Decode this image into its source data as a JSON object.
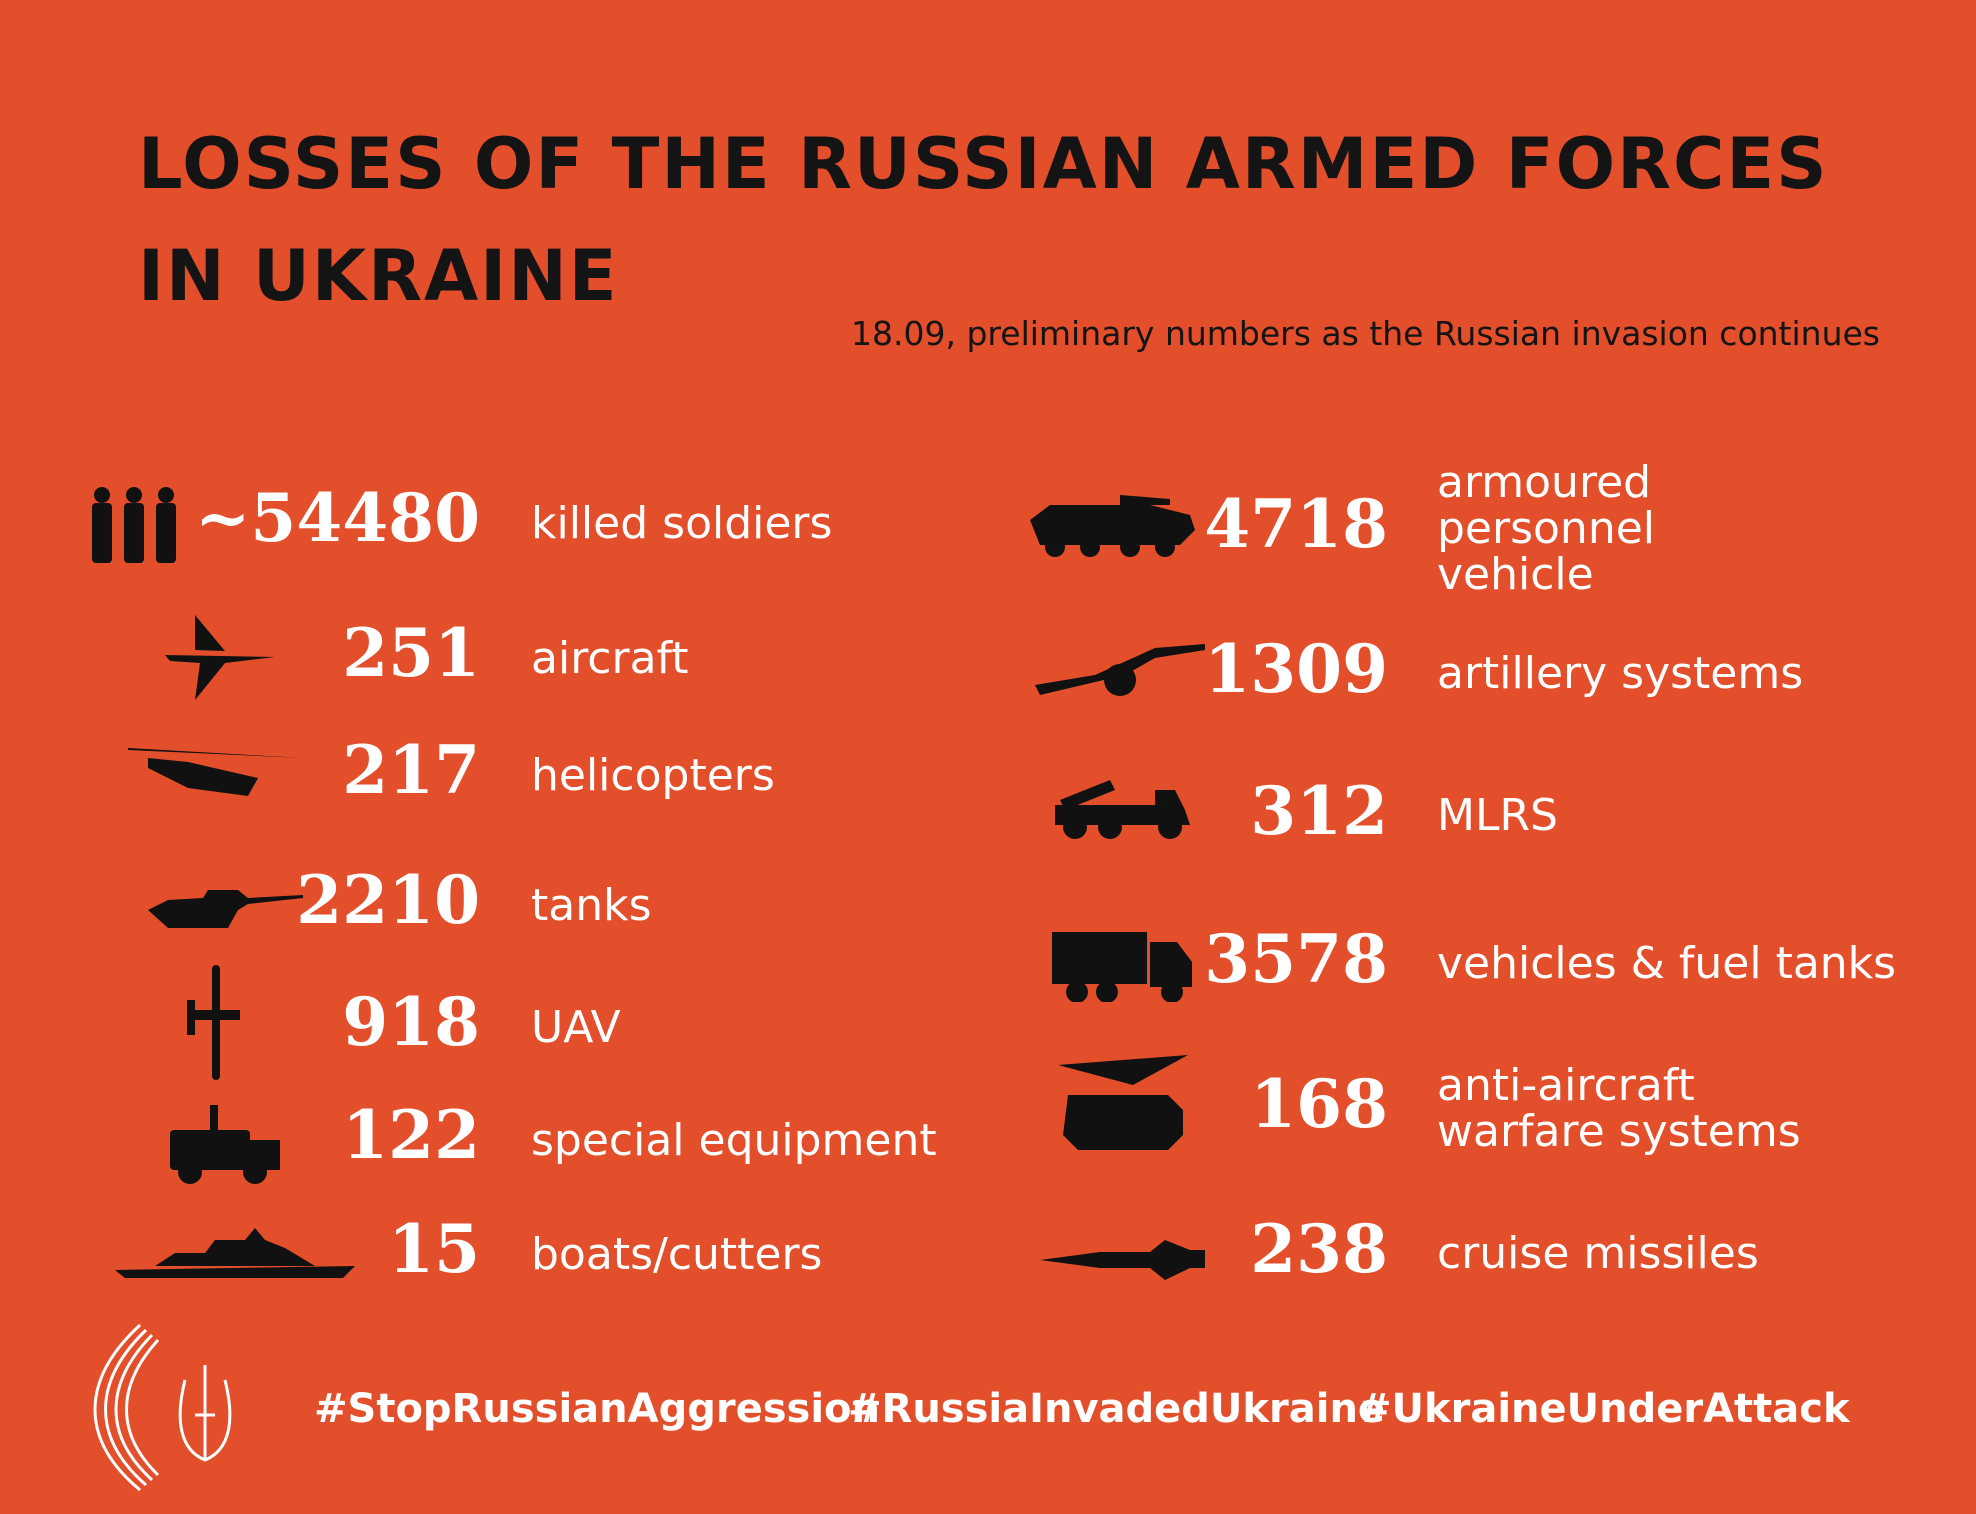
{
  "header": {
    "title": "LOSSES OF THE RUSSIAN ARMED FORCES IN UKRAINE",
    "subtitle": "18.09, preliminary numbers as the Russian invasion continues"
  },
  "left": [
    {
      "count": "~54480",
      "label": "killed soldiers"
    },
    {
      "count": 251,
      "label": "aircraft"
    },
    {
      "count": 217,
      "label": "helicopters"
    },
    {
      "count": 2210,
      "label": "tanks"
    },
    {
      "count": 918,
      "label": "UAV"
    },
    {
      "count": 122,
      "label": "special equipment"
    },
    {
      "count": 15,
      "label": "boats/cutters"
    }
  ],
  "right": [
    {
      "count": 4718,
      "label": "armoured personnel vehicle"
    },
    {
      "count": 1309,
      "label": "artillery systems"
    },
    {
      "count": 312,
      "label": "MLRS"
    },
    {
      "count": 3578,
      "label": "vehicles & fuel tanks"
    },
    {
      "count": 168,
      "label": "anti-aircraft warfare systems"
    },
    {
      "count": 238,
      "label": "cruise missiles"
    }
  ],
  "footer": {
    "hashtags": [
      "#StopRussianAggression",
      "#RussiaInvadedUkraine",
      "#UkraineUnderAttack"
    ]
  }
}
